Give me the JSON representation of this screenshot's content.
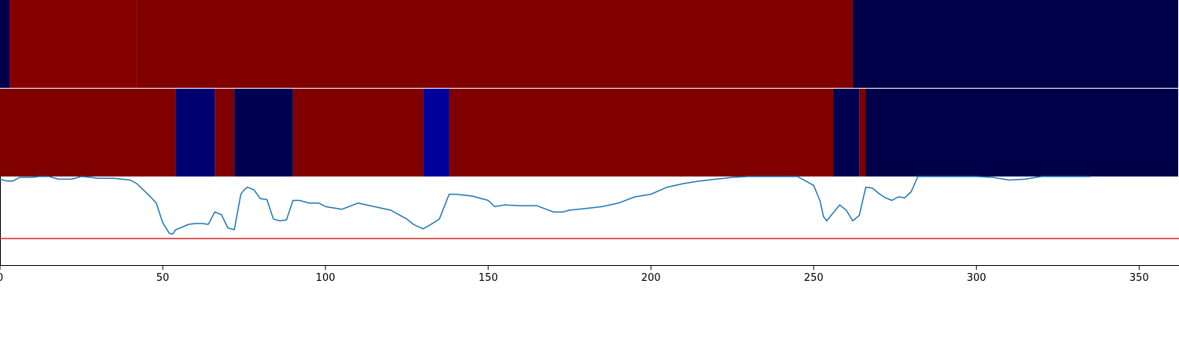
{
  "chart_data": {
    "type": "line",
    "xlim": [
      0,
      362
    ],
    "x_ticks": [
      0,
      50,
      100,
      150,
      200,
      250,
      300,
      350
    ],
    "x_tick_labels": [
      "0",
      "50",
      "100",
      "150",
      "200",
      "250",
      "300",
      "350"
    ],
    "grid": false,
    "heatmap_rows": [
      {
        "segments": [
          {
            "start": 0,
            "end": 3,
            "color": "#00004a"
          },
          {
            "start": 3,
            "end": 42,
            "color": "#870000"
          },
          {
            "start": 42,
            "end": 262,
            "color": "#800000"
          },
          {
            "start": 262,
            "end": 362,
            "color": "#000048"
          }
        ]
      },
      {
        "segments": [
          {
            "start": 0,
            "end": 54,
            "color": "#800000"
          },
          {
            "start": 54,
            "end": 66,
            "color": "#000070"
          },
          {
            "start": 66,
            "end": 72,
            "color": "#800000"
          },
          {
            "start": 72,
            "end": 90,
            "color": "#000050"
          },
          {
            "start": 90,
            "end": 130,
            "color": "#800000"
          },
          {
            "start": 130,
            "end": 138,
            "color": "#00009a"
          },
          {
            "start": 138,
            "end": 256,
            "color": "#800000"
          },
          {
            "start": 256,
            "end": 264,
            "color": "#000050"
          },
          {
            "start": 264,
            "end": 266,
            "color": "#800000"
          },
          {
            "start": 266,
            "end": 362,
            "color": "#000048"
          }
        ]
      }
    ],
    "line_panel_ylim": [
      0,
      1
    ],
    "threshold": {
      "value": 0.3,
      "color": "#d62728"
    },
    "series": [
      {
        "color": "#1f77b4",
        "x": [
          0,
          2,
          4,
          6,
          8,
          10,
          12,
          15,
          18,
          22,
          25,
          28,
          30,
          35,
          40,
          42,
          44,
          46,
          48,
          50,
          52,
          53,
          54,
          56,
          58,
          60,
          62,
          64,
          66,
          68,
          70,
          72,
          74,
          75,
          76,
          78,
          80,
          82,
          84,
          86,
          88,
          90,
          92,
          95,
          98,
          100,
          105,
          110,
          115,
          120,
          125,
          127,
          130,
          132,
          135,
          138,
          140,
          145,
          150,
          152,
          155,
          160,
          165,
          170,
          173,
          175,
          180,
          185,
          190,
          195,
          200,
          205,
          210,
          215,
          220,
          225,
          230,
          240,
          245,
          250,
          252,
          253,
          254,
          258,
          260,
          262,
          264,
          266,
          268,
          270,
          272,
          274,
          276,
          278,
          280,
          282,
          285,
          290,
          295,
          300,
          305,
          310,
          315,
          320,
          325,
          330,
          335
        ],
        "y": [
          0.97,
          0.95,
          0.95,
          0.99,
          0.99,
          0.99,
          1.0,
          1.0,
          0.97,
          0.97,
          1.0,
          0.99,
          0.98,
          0.98,
          0.96,
          0.92,
          0.85,
          0.78,
          0.7,
          0.48,
          0.36,
          0.35,
          0.4,
          0.43,
          0.46,
          0.47,
          0.47,
          0.46,
          0.6,
          0.57,
          0.42,
          0.4,
          0.8,
          0.85,
          0.88,
          0.85,
          0.75,
          0.74,
          0.52,
          0.5,
          0.51,
          0.73,
          0.73,
          0.7,
          0.7,
          0.66,
          0.63,
          0.7,
          0.66,
          0.62,
          0.52,
          0.46,
          0.41,
          0.45,
          0.52,
          0.8,
          0.8,
          0.78,
          0.73,
          0.66,
          0.68,
          0.67,
          0.67,
          0.6,
          0.6,
          0.62,
          0.64,
          0.66,
          0.7,
          0.77,
          0.8,
          0.88,
          0.92,
          0.95,
          0.97,
          0.99,
          1.0,
          1.0,
          1.0,
          0.9,
          0.72,
          0.55,
          0.5,
          0.68,
          0.62,
          0.5,
          0.56,
          0.88,
          0.87,
          0.81,
          0.76,
          0.73,
          0.77,
          0.76,
          0.83,
          1.0,
          1.0,
          1.0,
          1.0,
          1.0,
          0.99,
          0.96,
          0.97,
          1.0,
          1.0,
          1.0,
          1.0
        ]
      }
    ]
  }
}
